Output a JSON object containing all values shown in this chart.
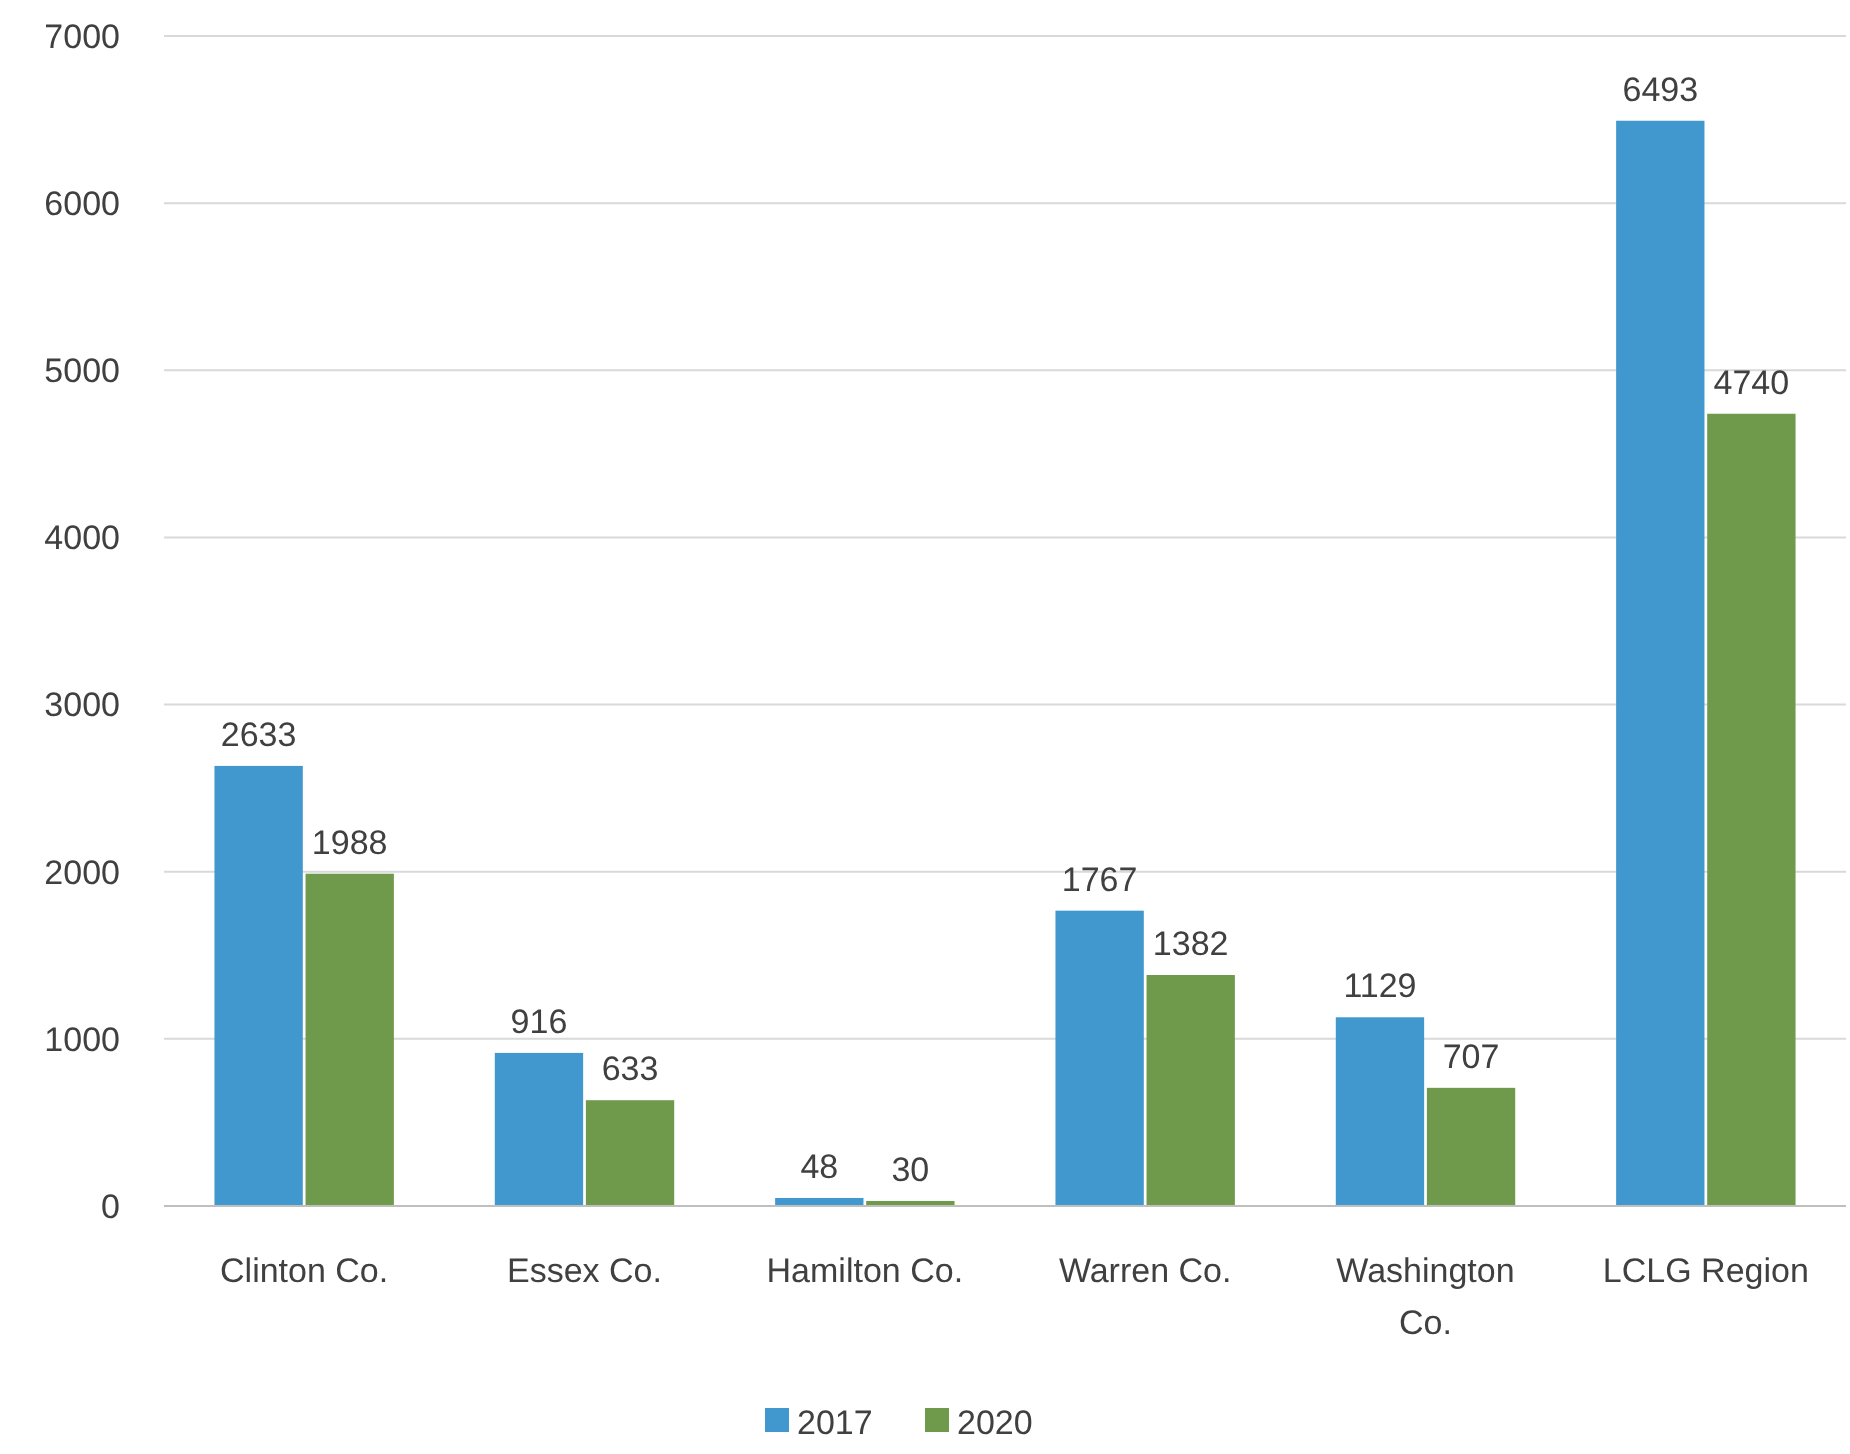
{
  "chart_data": {
    "type": "bar",
    "categories": [
      "Clinton Co.",
      "Essex Co.",
      "Hamilton Co.",
      "Warren Co.",
      "Washington Co.",
      "LCLG Region"
    ],
    "series": [
      {
        "name": "2017",
        "color": "#4198cf",
        "values": [
          2633,
          916,
          48,
          1767,
          1129,
          6493
        ]
      },
      {
        "name": "2020",
        "color": "#6f9a4b",
        "values": [
          1988,
          633,
          30,
          1382,
          707,
          4740
        ]
      }
    ],
    "ylim": [
      0,
      7000
    ],
    "yticks": [
      0,
      1000,
      2000,
      3000,
      4000,
      5000,
      6000,
      7000
    ],
    "grid": "y",
    "legend": "bottom",
    "data_labels": true
  }
}
